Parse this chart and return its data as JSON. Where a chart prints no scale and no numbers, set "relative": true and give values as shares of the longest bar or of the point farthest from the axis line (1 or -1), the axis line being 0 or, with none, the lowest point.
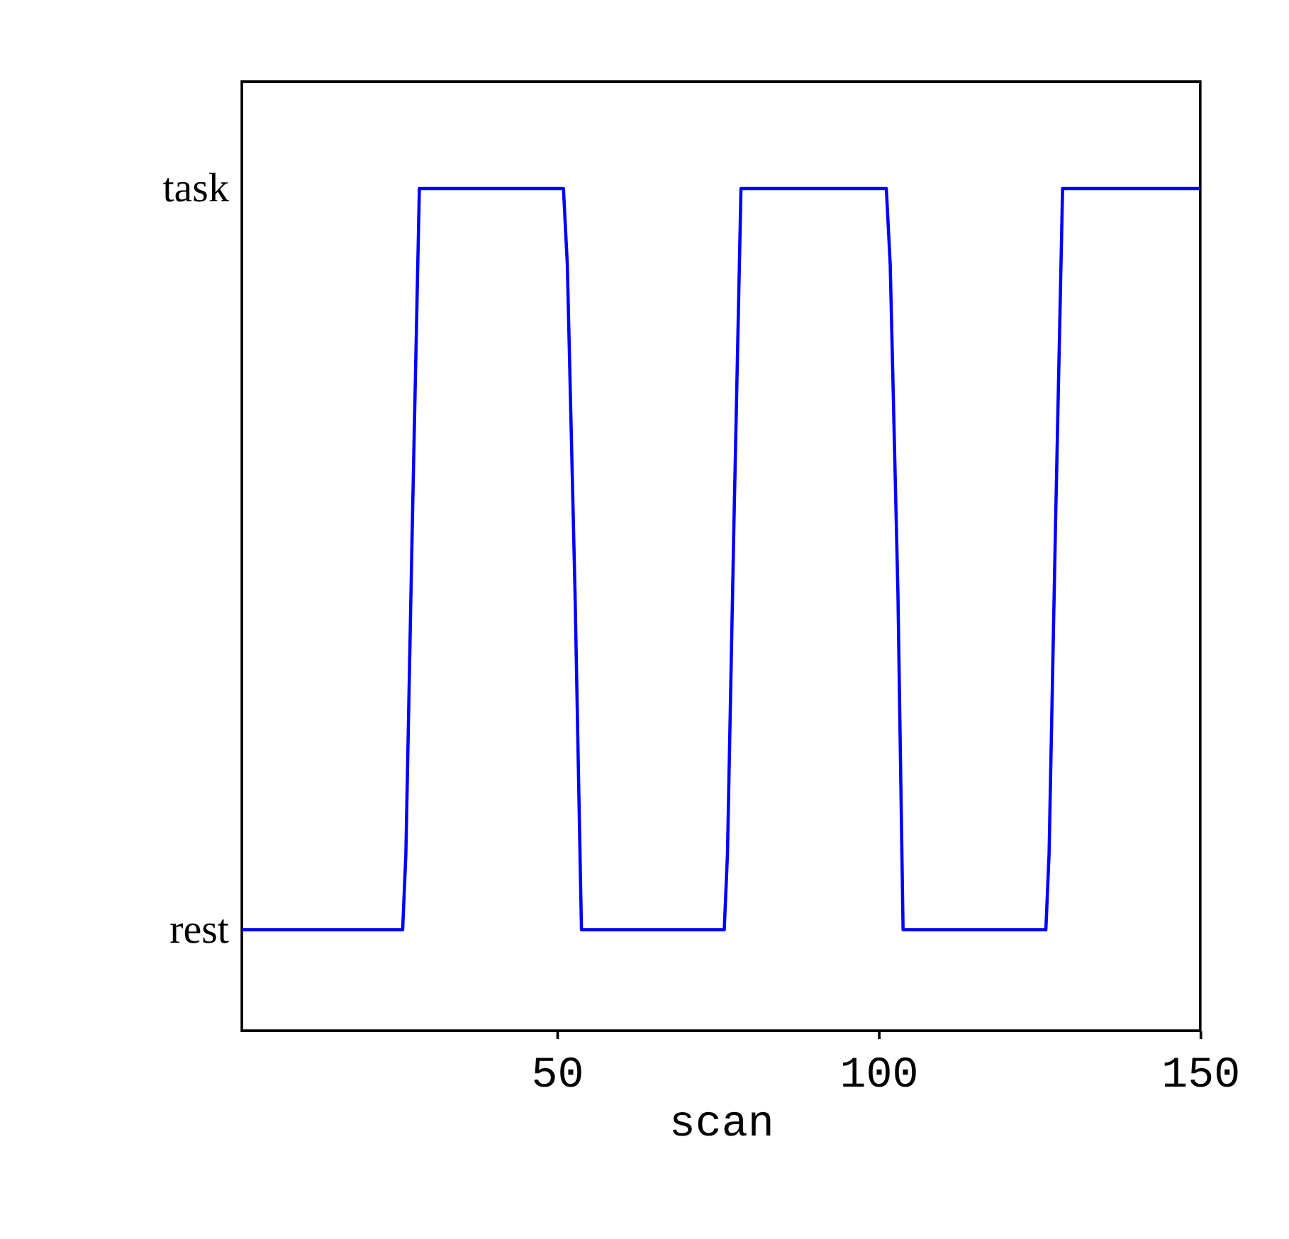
{
  "chart_data": {
    "type": "line",
    "xlabel": "scan",
    "relative": true,
    "series": [
      {
        "color": "#0000ff",
        "x": [
          1,
          26,
          26.5,
          27.5,
          28.6,
          51,
          51.6,
          52.8,
          53.8,
          76,
          76.5,
          77.5,
          78.6,
          101.2,
          101.8,
          103,
          103.8,
          126,
          126.5,
          127.5,
          128.6,
          150
        ],
        "values": [
          0.12,
          0.12,
          0.21,
          0.6,
          1,
          1,
          0.91,
          0.52,
          0.12,
          0.12,
          0.21,
          0.6,
          1,
          1,
          0.91,
          0.52,
          0.12,
          0.12,
          0.21,
          0.6,
          1,
          1
        ]
      }
    ],
    "annotations": [
      "task",
      "rest"
    ],
    "xlim": [
      1,
      150
    ],
    "xticks": [
      50,
      100,
      150
    ],
    "grid": false,
    "marker": "none",
    "line_style": "solid"
  }
}
